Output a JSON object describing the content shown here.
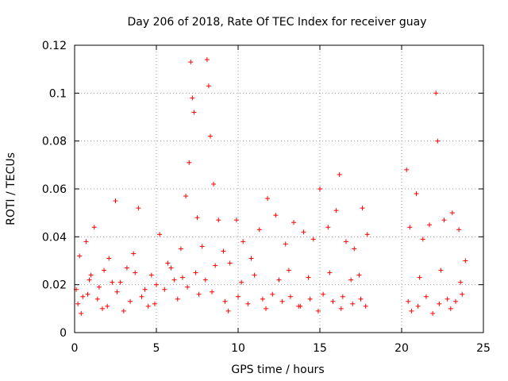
{
  "chart_data": {
    "type": "scatter",
    "title": "Day 206 of 2018, Rate Of TEC Index for receiver guay",
    "xlabel": "GPS time / hours",
    "ylabel": "ROTI / TECUs",
    "xlim": [
      0,
      25
    ],
    "ylim": [
      0,
      0.12
    ],
    "xticks": [
      0,
      5,
      10,
      15,
      20,
      25
    ],
    "xtick_labels": [
      "0",
      "5",
      "10",
      "15",
      "20",
      "25"
    ],
    "yticks": [
      0,
      0.02,
      0.04,
      0.06,
      0.08,
      0.1,
      0.12
    ],
    "ytick_labels": [
      "0",
      "0.02",
      "0.04",
      "0.06",
      "0.08",
      "0.1",
      "0.12"
    ],
    "grid": true,
    "marker": "+",
    "series": [
      {
        "name": "ROTI",
        "color": "#ff0000",
        "x": [
          0.1,
          0.3,
          0.5,
          0.7,
          0.9,
          1.2,
          1.5,
          1.8,
          2.1,
          2.5,
          2.8,
          3.2,
          3.6,
          3.9,
          4.3,
          4.7,
          5.2,
          5.7,
          6.1,
          6.5,
          6.8,
          7.0,
          7.1,
          7.2,
          7.3,
          7.5,
          7.8,
          8.1,
          8.2,
          8.3,
          8.5,
          8.8,
          9.1,
          9.5,
          9.9,
          10.3,
          10.8,
          11.3,
          11.8,
          12.3,
          12.9,
          13.4,
          14.0,
          14.6,
          15.0,
          15.5,
          16.0,
          16.2,
          16.6,
          17.1,
          17.6,
          17.9,
          20.3,
          20.5,
          20.9,
          21.3,
          21.7,
          22.1,
          22.2,
          22.6,
          23.1,
          23.5,
          23.9,
          0.2,
          0.8,
          1.4,
          2.0,
          2.6,
          3.4,
          4.1,
          4.9,
          5.5,
          6.3,
          6.9,
          7.6,
          8.4,
          9.2,
          10.0,
          10.6,
          11.5,
          12.1,
          12.7,
          13.2,
          13.8,
          14.4,
          15.2,
          15.8,
          16.4,
          17.0,
          17.5,
          20.4,
          21.0,
          21.5,
          22.3,
          22.8,
          23.3,
          23.7,
          0.4,
          1.0,
          1.7,
          2.3,
          3.0,
          3.7,
          4.5,
          5.0,
          5.9,
          6.6,
          7.4,
          8.0,
          8.6,
          9.4,
          10.2,
          11.0,
          11.7,
          12.5,
          13.1,
          13.7,
          14.3,
          14.9,
          15.6,
          16.3,
          16.9,
          17.4,
          17.8,
          20.6,
          21.1,
          21.9,
          22.4,
          23.0,
          23.6
        ],
        "y": [
          0.018,
          0.032,
          0.015,
          0.038,
          0.022,
          0.044,
          0.019,
          0.026,
          0.031,
          0.055,
          0.021,
          0.027,
          0.033,
          0.052,
          0.018,
          0.024,
          0.041,
          0.029,
          0.022,
          0.035,
          0.057,
          0.071,
          0.113,
          0.098,
          0.092,
          0.048,
          0.036,
          0.114,
          0.103,
          0.082,
          0.062,
          0.047,
          0.034,
          0.029,
          0.047,
          0.038,
          0.031,
          0.043,
          0.056,
          0.049,
          0.037,
          0.046,
          0.042,
          0.039,
          0.06,
          0.044,
          0.051,
          0.066,
          0.038,
          0.035,
          0.052,
          0.041,
          0.068,
          0.044,
          0.058,
          0.039,
          0.045,
          0.1,
          0.08,
          0.047,
          0.05,
          0.043,
          0.03,
          0.012,
          0.016,
          0.014,
          0.011,
          0.017,
          0.013,
          0.015,
          0.012,
          0.018,
          0.014,
          0.019,
          0.016,
          0.017,
          0.013,
          0.015,
          0.012,
          0.014,
          0.016,
          0.013,
          0.015,
          0.011,
          0.014,
          0.016,
          0.013,
          0.015,
          0.012,
          0.014,
          0.013,
          0.011,
          0.015,
          0.012,
          0.014,
          0.013,
          0.016,
          0.008,
          0.024,
          0.01,
          0.021,
          0.009,
          0.025,
          0.011,
          0.02,
          0.027,
          0.023,
          0.025,
          0.022,
          0.028,
          0.009,
          0.021,
          0.024,
          0.01,
          0.022,
          0.026,
          0.011,
          0.023,
          0.009,
          0.025,
          0.01,
          0.022,
          0.024,
          0.011,
          0.009,
          0.023,
          0.008,
          0.026,
          0.01,
          0.021
        ]
      }
    ]
  }
}
